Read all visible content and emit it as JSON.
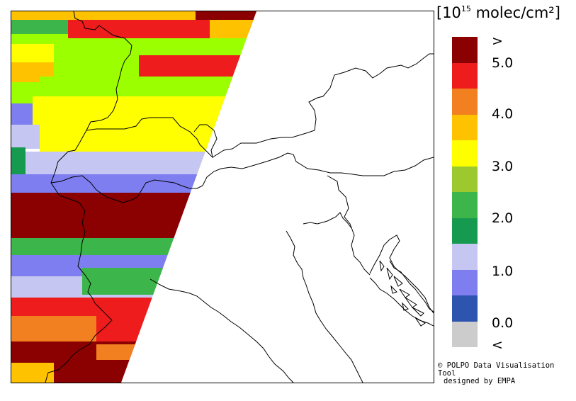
{
  "legend": {
    "unit_prefix": "[10",
    "unit_exponent": "15",
    "unit_suffix": " molec/cm²]",
    "labels": [
      ">",
      "5.0",
      "4.0",
      "3.0",
      "2.0",
      "1.0",
      "0.0",
      "<"
    ],
    "colors": [
      "#8b0000",
      "#ee1c1c",
      "#f28020",
      "#ffc200",
      "#ffff00",
      "#9cca2e",
      "#3cb54a",
      "#169a4f",
      "#c6c6f2",
      "#7e7ef0",
      "#2d55b0",
      "#cccccc"
    ]
  },
  "credit": {
    "line1": "© POLPO Data Visualisation Tool",
    "line2": "designed by EMPA"
  }
}
